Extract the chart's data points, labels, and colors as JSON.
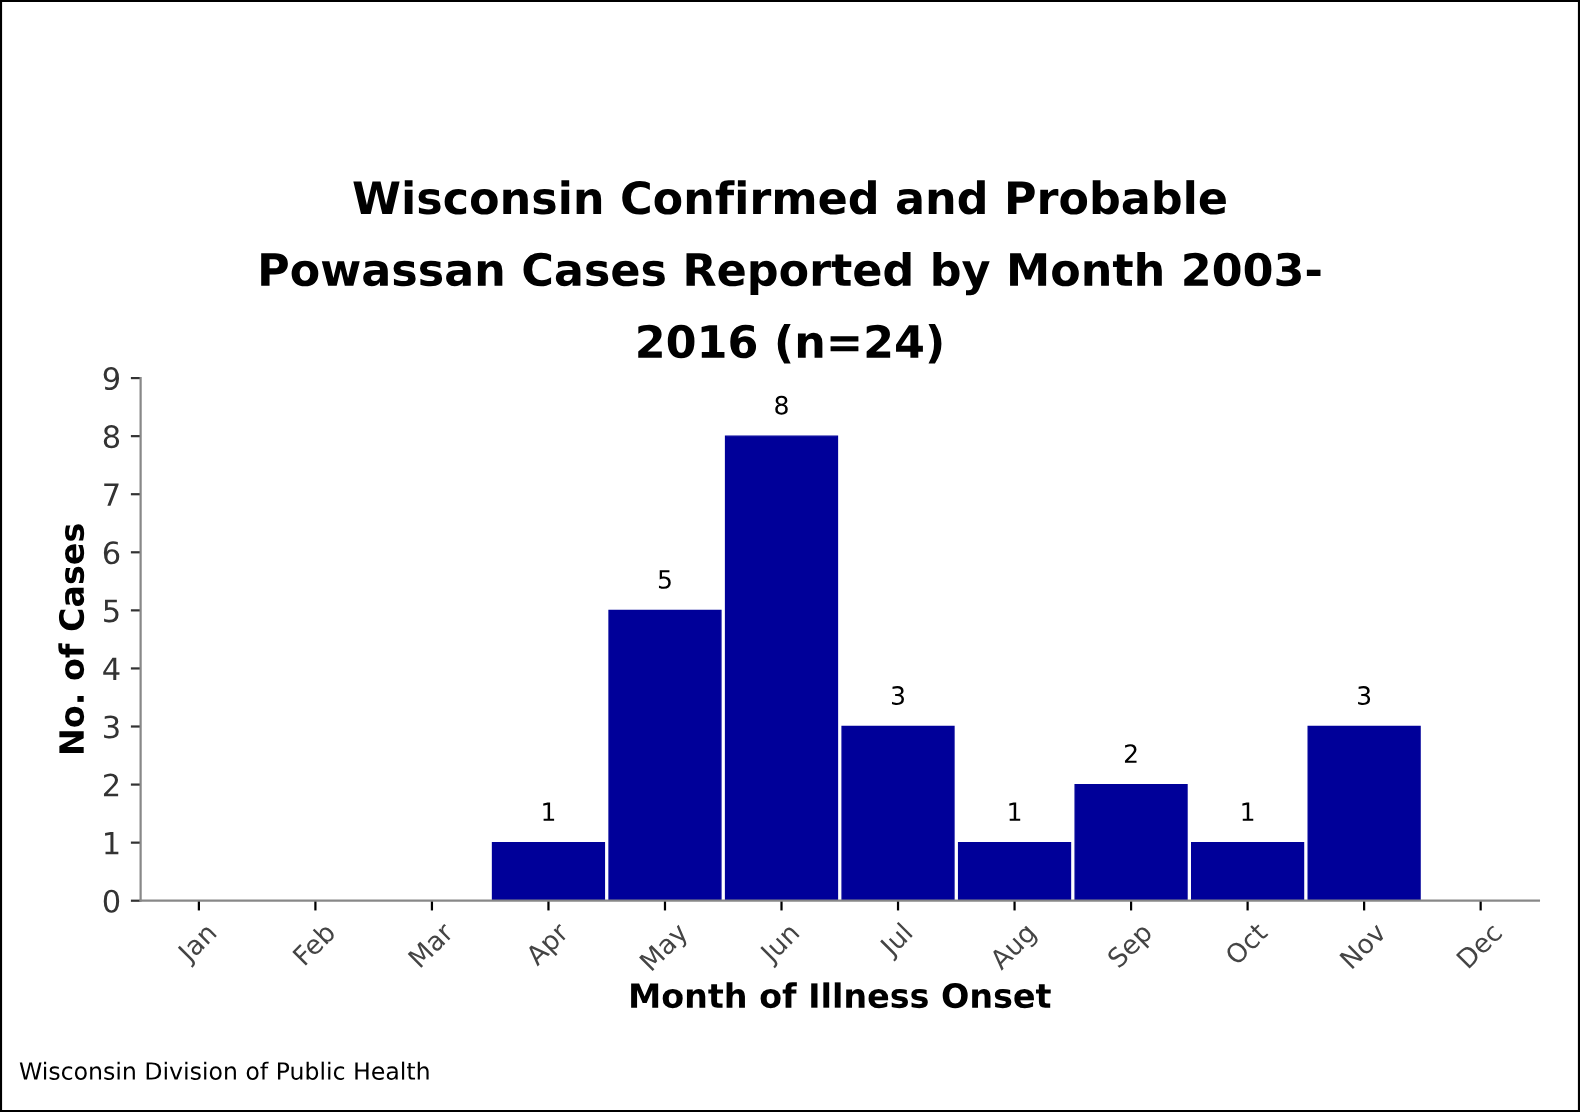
{
  "chart_data": {
    "type": "bar",
    "title": "Wisconsin Confirmed and Probable\nPowassan Cases Reported by Month 2003-\n2016 (n=24)",
    "xlabel": "Month of Illness Onset",
    "ylabel": "No. of Cases",
    "categories": [
      "Jan",
      "Feb",
      "Mar",
      "Apr",
      "May",
      "Jun",
      "Jul",
      "Aug",
      "Sep",
      "Oct",
      "Nov",
      "Dec"
    ],
    "values": [
      0,
      0,
      0,
      1,
      5,
      8,
      3,
      1,
      2,
      1,
      3,
      0
    ],
    "value_labels": [
      null,
      null,
      null,
      "1",
      "5",
      "8",
      "3",
      "1",
      "2",
      "1",
      "3",
      null
    ],
    "color": "#000099",
    "ylim": [
      0,
      9
    ],
    "yticks": [
      0,
      1,
      2,
      3,
      4,
      5,
      6,
      7,
      8,
      9
    ],
    "grid": false,
    "annotations": [
      "Wisconsin Division of Public Health"
    ]
  }
}
